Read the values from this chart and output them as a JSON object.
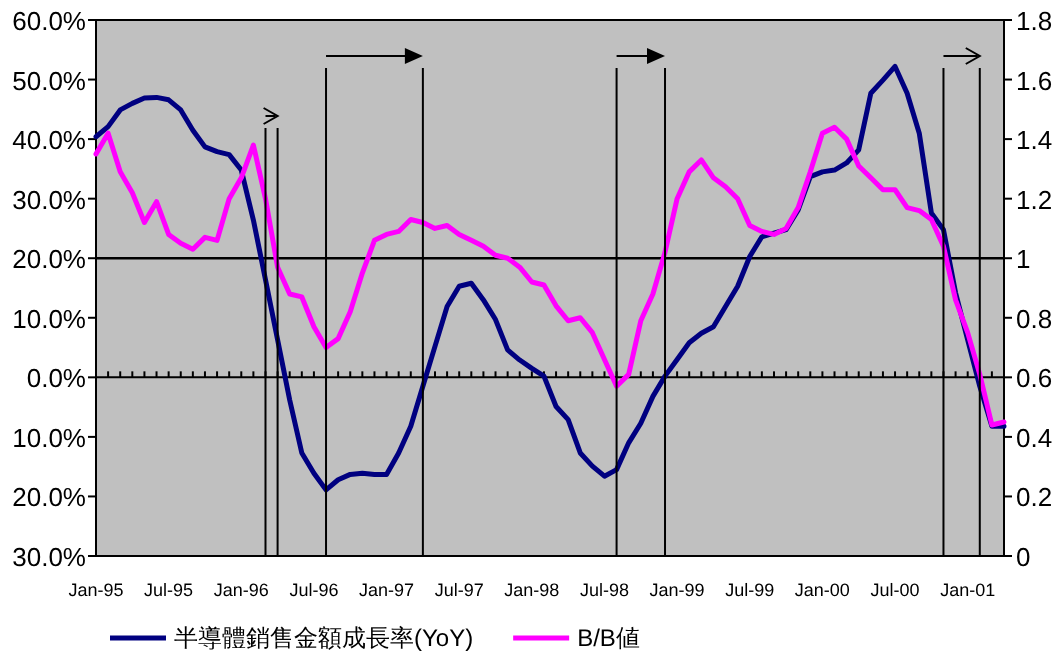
{
  "chart_data": {
    "type": "line",
    "x": [
      "1995-01",
      "1995-02",
      "1995-03",
      "1995-04",
      "1995-05",
      "1995-06",
      "1995-07",
      "1995-08",
      "1995-09",
      "1995-10",
      "1995-11",
      "1995-12",
      "1996-01",
      "1996-02",
      "1996-03",
      "1996-04",
      "1996-05",
      "1996-06",
      "1996-07",
      "1996-08",
      "1996-09",
      "1996-10",
      "1996-11",
      "1996-12",
      "1997-01",
      "1997-02",
      "1997-03",
      "1997-04",
      "1997-05",
      "1997-06",
      "1997-07",
      "1997-08",
      "1997-09",
      "1997-10",
      "1997-11",
      "1997-12",
      "1998-01",
      "1998-02",
      "1998-03",
      "1998-04",
      "1998-05",
      "1998-06",
      "1998-07",
      "1998-08",
      "1998-09",
      "1998-10",
      "1998-11",
      "1998-12",
      "1999-01",
      "1999-02",
      "1999-03",
      "1999-04",
      "1999-05",
      "1999-06",
      "1999-07",
      "1999-08",
      "1999-09",
      "1999-10",
      "1999-11",
      "1999-12",
      "2000-01",
      "2000-02",
      "2000-03",
      "2000-04",
      "2000-05",
      "2000-06",
      "2000-07",
      "2000-08",
      "2000-09",
      "2000-10",
      "2000-11",
      "2000-12",
      "2001-01",
      "2001-02",
      "2001-03",
      "2001-04"
    ],
    "series": [
      {
        "name": "半導體銷售金額成長率(YoY)",
        "color": "#000080",
        "values": [
          40.4,
          42.1,
          44.9,
          46.0,
          46.9,
          47.0,
          46.6,
          44.9,
          41.5,
          38.7,
          37.9,
          37.4,
          34.8,
          26.4,
          16.4,
          6.3,
          -3.8,
          -12.7,
          -16.1,
          -18.9,
          -17.2,
          -16.3,
          -16.1,
          -16.3,
          -16.3,
          -12.7,
          -8.2,
          -1.5,
          5.2,
          11.9,
          15.3,
          15.8,
          13.0,
          9.7,
          4.6,
          2.9,
          1.5,
          0.2,
          -4.9,
          -7.1,
          -12.7,
          -14.9,
          -16.6,
          -15.5,
          -11.0,
          -7.7,
          -3.2,
          0.2,
          3.0,
          5.8,
          7.4,
          8.5,
          11.9,
          15.3,
          20.3,
          23.6,
          24.2,
          24.8,
          28.1,
          33.7,
          34.5,
          34.8,
          36.0,
          38.2,
          47.7,
          49.9,
          52.2,
          47.7,
          41.0,
          27.6,
          24.8,
          14.2,
          6.3,
          -1.5,
          -8.2,
          -8.2
        ]
      },
      {
        "name": "B/B値",
        "color": "#ff00ff",
        "axis": "y2",
        "values": [
          1.35,
          1.42,
          1.29,
          1.22,
          1.12,
          1.19,
          1.08,
          1.05,
          1.03,
          1.07,
          1.06,
          1.2,
          1.27,
          1.38,
          1.2,
          0.97,
          0.88,
          0.87,
          0.77,
          0.7,
          0.73,
          0.82,
          0.95,
          1.06,
          1.08,
          1.09,
          1.13,
          1.12,
          1.1,
          1.11,
          1.08,
          1.06,
          1.04,
          1.01,
          1.0,
          0.97,
          0.92,
          0.91,
          0.84,
          0.79,
          0.8,
          0.75,
          0.66,
          0.57,
          0.61,
          0.79,
          0.88,
          1.02,
          1.2,
          1.29,
          1.33,
          1.27,
          1.24,
          1.2,
          1.11,
          1.09,
          1.08,
          1.1,
          1.17,
          1.29,
          1.42,
          1.44,
          1.4,
          1.31,
          1.27,
          1.23,
          1.23,
          1.17,
          1.16,
          1.13,
          1.04,
          0.86,
          0.75,
          0.61,
          0.44,
          0.45
        ]
      }
    ],
    "xlim": [
      "1995-01",
      "2001-04"
    ],
    "xticks": [
      {
        "value": "1995-01",
        "label": "Jan-95"
      },
      {
        "value": "1995-07",
        "label": "Jul-95"
      },
      {
        "value": "1996-01",
        "label": "Jan-96"
      },
      {
        "value": "1996-07",
        "label": "Jul-96"
      },
      {
        "value": "1997-01",
        "label": "Jan-97"
      },
      {
        "value": "1997-07",
        "label": "Jul-97"
      },
      {
        "value": "1998-01",
        "label": "Jan-98"
      },
      {
        "value": "1998-07",
        "label": "Jul-98"
      },
      {
        "value": "1999-01",
        "label": "Jan-99"
      },
      {
        "value": "1999-07",
        "label": "Jul-99"
      },
      {
        "value": "2000-01",
        "label": "Jan-00"
      },
      {
        "value": "2000-07",
        "label": "Jul-00"
      },
      {
        "value": "2001-01",
        "label": "Jan-01"
      }
    ],
    "ylim": [
      -30,
      60
    ],
    "yticks": [
      {
        "value": 60,
        "label": "60.0%"
      },
      {
        "value": 50,
        "label": "50.0%"
      },
      {
        "value": 40,
        "label": "40.0%"
      },
      {
        "value": 30,
        "label": "30.0%"
      },
      {
        "value": 20,
        "label": "20.0%"
      },
      {
        "value": 10,
        "label": "10.0%"
      },
      {
        "value": 0,
        "label": "0.0%"
      },
      {
        "value": -10,
        "label": "10.0%"
      },
      {
        "value": -20,
        "label": "20.0%"
      },
      {
        "value": -30,
        "label": "30.0%"
      }
    ],
    "y2lim": [
      0,
      1.8
    ],
    "y2ticks": [
      1.8,
      1.6,
      1.4,
      1.2,
      1,
      0.8,
      0.6,
      0.4,
      0.2,
      0
    ],
    "ref_lines": [
      {
        "axis": "y",
        "value": 20,
        "color": "#000000"
      },
      {
        "axis": "x",
        "value": "1996-03",
        "color": "#000000"
      },
      {
        "axis": "x",
        "value": "1996-04",
        "color": "#000000"
      },
      {
        "axis": "x",
        "value": "1996-08",
        "color": "#000000"
      },
      {
        "axis": "x",
        "value": "1997-04",
        "color": "#000000"
      },
      {
        "axis": "x",
        "value": "1998-08",
        "color": "#000000"
      },
      {
        "axis": "x",
        "value": "1998-12",
        "color": "#000000"
      },
      {
        "axis": "x",
        "value": "2000-11",
        "color": "#000000"
      },
      {
        "axis": "x",
        "value": "2001-02",
        "color": "#000000"
      }
    ],
    "grid": false,
    "legend": "bottom",
    "marker": "none",
    "line_style": "solid"
  }
}
